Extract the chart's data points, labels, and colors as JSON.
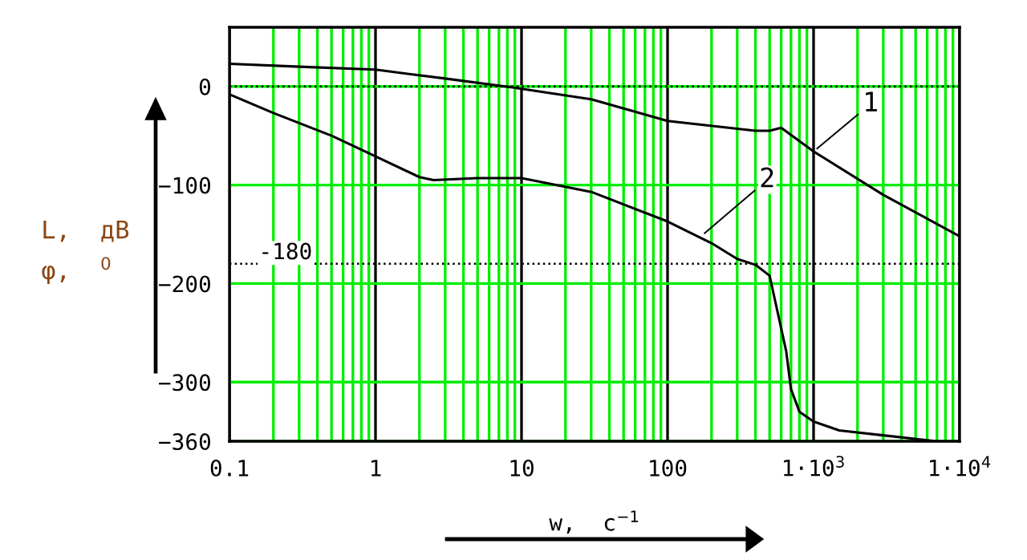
{
  "chart_data": {
    "type": "line",
    "xlabel": "w,  c$^{−1}$",
    "ylabel": "L,  дВ\nφ,  $^{0}$",
    "log": "x",
    "xlim": [
      0.1,
      10000
    ],
    "ylim": [
      -360,
      60
    ],
    "xticks": [
      0.1,
      1,
      10,
      100,
      {
        "value": 1000,
        "label": "1·10$^{3}$"
      },
      {
        "value": 10000,
        "label": "1·10$^{4}$"
      }
    ],
    "yticks": [
      0,
      {
        "value": -100,
        "label": "−100"
      },
      {
        "value": -200,
        "label": "−200"
      },
      {
        "value": -300,
        "label": "−300"
      },
      {
        "value": -360,
        "label": "−360"
      }
    ],
    "grid": true,
    "legend": false,
    "marker": "none",
    "line_style": "solid",
    "series": [
      {
        "color": "#000000",
        "x": [
          0.1,
          0.3,
          1,
          3,
          8.7,
          30,
          100,
          400,
          500,
          600,
          1000,
          3000,
          10000
        ],
        "values": [
          23,
          20,
          17,
          8,
          -1,
          -13,
          -35,
          -45,
          -45,
          -42,
          -66,
          -110,
          -152
        ]
      },
      {
        "color": "#000000",
        "x": [
          0.1,
          0.2,
          0.5,
          1,
          2,
          2.5,
          5,
          10,
          30,
          100,
          200,
          300,
          400,
          500,
          550,
          650,
          700,
          800,
          1000,
          1500,
          3000,
          7000
        ],
        "values": [
          -8,
          -27,
          -50,
          -71,
          -92,
          -95,
          -93,
          -93,
          -107,
          -137,
          -159,
          -175,
          -181,
          -192,
          -220,
          -269,
          -307,
          -330,
          -340,
          -349,
          -354,
          -360
        ]
      }
    ],
    "ref_lines": [
      {
        "axis": "y",
        "value": -180,
        "label": "-180",
        "color": "#000000",
        "line_style": "dotted"
      },
      {
        "axis": "y",
        "value": 0,
        "label": null,
        "color": "#000000",
        "line_style": "dotted"
      }
    ],
    "annotations": [
      {
        "text": "1",
        "x": 1000,
        "y": -66
      },
      {
        "text": "2",
        "x": 170,
        "y": -152
      }
    ]
  }
}
